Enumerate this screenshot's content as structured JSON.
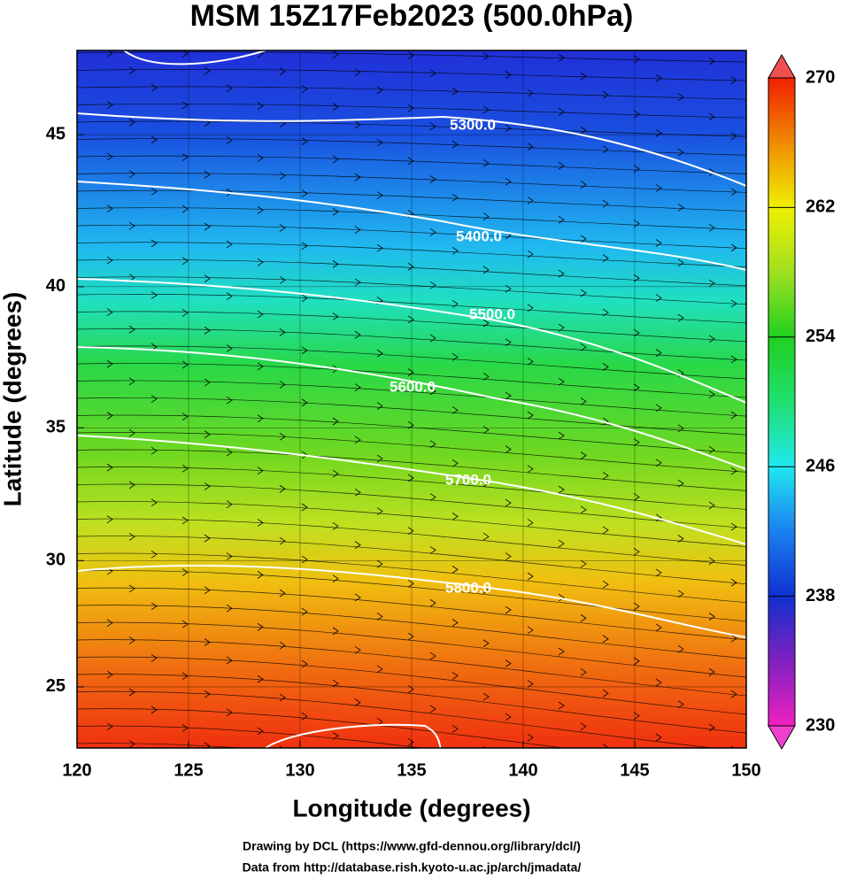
{
  "chart_data": {
    "type": "map",
    "title": "MSM 15Z17Feb2023 (500.0hPa)",
    "x_label": "Longitude (degrees)",
    "y_label": "Latitude  (degrees)",
    "xlim": [
      120,
      150
    ],
    "xticks": [
      120,
      125,
      130,
      135,
      140,
      145,
      150
    ],
    "ylim": [
      22.5,
      47.6
    ],
    "yticks": [
      25,
      30,
      35,
      40,
      45
    ],
    "projection": "mercator",
    "grid": true,
    "colorbar": {
      "lim": [
        230,
        270
      ],
      "ticks": [
        230,
        238,
        246,
        254,
        262,
        270
      ]
    },
    "contour_labels": [
      "5300.0",
      "5400.0",
      "5500.0",
      "5600.0",
      "5700.0",
      "5800.0"
    ],
    "footer": [
      "Drawing by DCL (https://www.gfd-dennou.org/library/dcl/)",
      "Data from http://database.rish.kyoto-u.ac.jp/arch/jmadata/"
    ]
  }
}
